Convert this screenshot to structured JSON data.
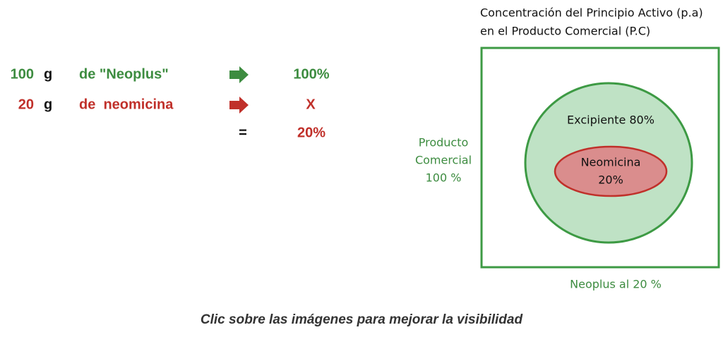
{
  "calculation": {
    "rows": [
      {
        "amount": "100",
        "unit": "g",
        "label": "de \"Neoplus\"",
        "result": "100%"
      },
      {
        "amount": "20",
        "unit": "g",
        "label": "de  neomicina",
        "result": "X"
      }
    ],
    "equals": "=",
    "answer": "20%"
  },
  "diagram": {
    "title": [
      "Concentración del Principio Activo (p.a)",
      "en el Producto Comercial (P.C)"
    ],
    "side_label": [
      "Producto",
      "Comercial",
      "100 %"
    ],
    "outer_circle_label": "Excipiente 80%",
    "inner_ellipse_label": [
      "Neomicina",
      "20%"
    ],
    "bottom_label": "Neoplus al 20 %"
  },
  "caption": "Clic sobre las imágenes para mejorar la visibilidad"
}
